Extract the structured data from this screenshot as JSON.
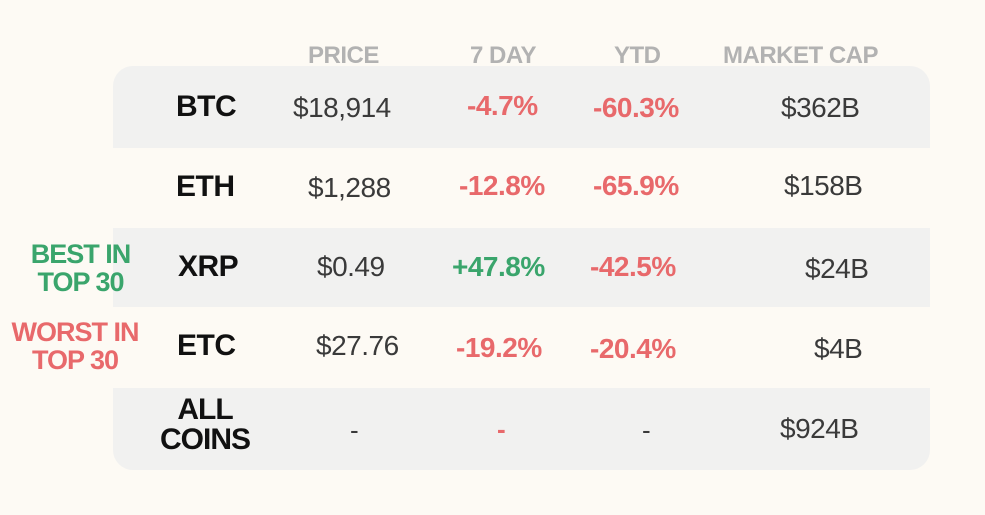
{
  "headers": {
    "price": "PRICE",
    "seven_day": "7 DAY",
    "ytd": "YTD",
    "market_cap": "MARKET CAP"
  },
  "rows": [
    {
      "coin": "BTC",
      "price": "$18,914",
      "seven_day": "-4.7%",
      "ytd": "-60.3%",
      "market_cap": "$362B"
    },
    {
      "coin": "ETH",
      "price": "$1,288",
      "seven_day": "-12.8%",
      "ytd": "-65.9%",
      "market_cap": "$158B"
    },
    {
      "coin": "XRP",
      "price": "$0.49",
      "seven_day": "+47.8%",
      "ytd": "-42.5%",
      "market_cap": "$24B"
    },
    {
      "coin": "ETC",
      "price": "$27.76",
      "seven_day": "-19.2%",
      "ytd": "-20.4%",
      "market_cap": "$4B"
    }
  ],
  "total": {
    "coin_line1": "ALL",
    "coin_line2": "COINS",
    "price": "-",
    "seven_day": "-",
    "ytd": "-",
    "market_cap": "$924B"
  },
  "labels": {
    "best_line1": "BEST IN",
    "best_line2": "TOP 30",
    "worst_line1": "WORST IN",
    "worst_line2": "TOP 30"
  },
  "colors": {
    "negative": "#e8696b",
    "positive": "#3aa56c",
    "header": "#b2b2b2",
    "band": "#f1f1f0"
  }
}
